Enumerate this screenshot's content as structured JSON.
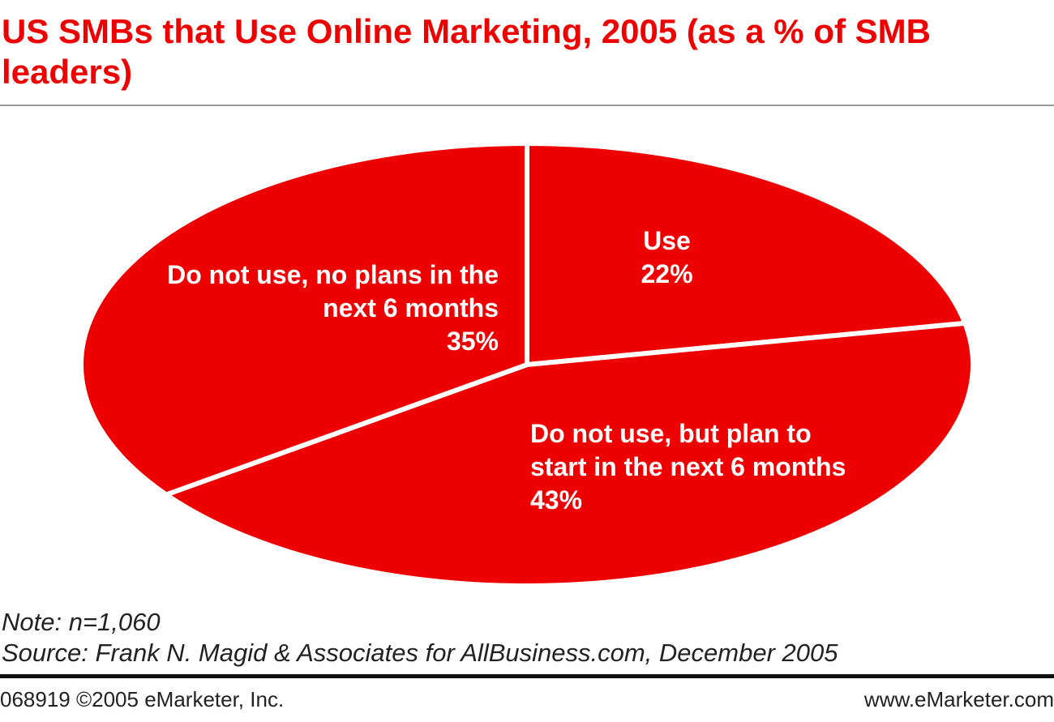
{
  "chart_data": {
    "type": "pie",
    "title": "US SMBs that Use Online Marketing, 2005 (as a % of SMB leaders)",
    "categories": [
      "Use",
      "Do not use, but plan to start in the next 6 months",
      "Do not use, no plans in the next 6 months"
    ],
    "values": [
      22,
      43,
      35
    ],
    "value_labels": [
      "22%",
      "43%",
      "35%"
    ],
    "color": "#ee0000",
    "note": "Note: n=1,060",
    "source": "Source: Frank N. Magid & Associates for AllBusiness.com, December 2005",
    "footer_left": "068919 ©2005 eMarketer, Inc.",
    "footer_right": "www.eMarketer.com"
  }
}
